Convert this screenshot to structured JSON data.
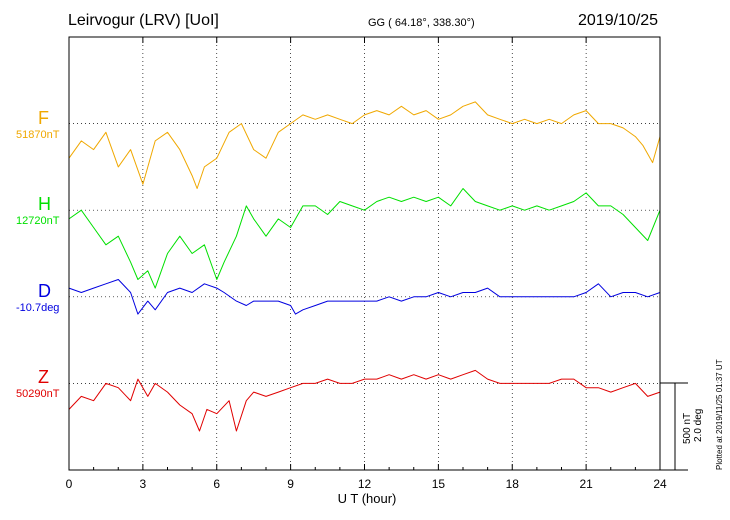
{
  "header": {
    "title": "Leirvogur (LRV)  [UoI]",
    "coords": "GG ( 64.18°, 338.30°)",
    "date": "2019/10/25"
  },
  "footnote": "Plotted at 2019/11/25 01:37 UT",
  "scale": {
    "nt": "500 nT",
    "deg": "2.0 deg"
  },
  "colors": {
    "F": "#f0a800",
    "H": "#00e000",
    "D": "#0000e0",
    "Z": "#e00000",
    "grid": "#000000"
  },
  "chart_data": {
    "type": "line",
    "xlabel": "U T (hour)",
    "xlim": [
      0,
      24
    ],
    "x_ticks": [
      0,
      3,
      6,
      9,
      12,
      15,
      18,
      21,
      24
    ],
    "x_tick_labels": [
      "0",
      "3",
      "6",
      "9",
      "12",
      "15",
      "18",
      "21",
      "24"
    ],
    "grid": true,
    "y_units_per_division": "500 nT / 2.0 deg",
    "series": [
      {
        "key": "F",
        "name": "F",
        "base_label": "51870nT",
        "base_division": 1,
        "x": [
          0,
          0.5,
          1,
          1.5,
          2,
          2.5,
          3,
          3.5,
          4,
          4.5,
          5,
          5.2,
          5.5,
          6,
          6.5,
          7,
          7.5,
          8,
          8.5,
          9,
          9.5,
          10,
          10.5,
          11,
          11.5,
          12,
          12.5,
          13,
          13.5,
          14,
          14.5,
          15,
          15.5,
          16,
          16.5,
          17,
          17.5,
          18,
          18.5,
          19,
          19.5,
          20,
          20.5,
          21,
          21.5,
          22,
          22.5,
          23,
          23.3,
          23.7,
          24
        ],
        "y": [
          -0.4,
          -0.2,
          -0.3,
          -0.1,
          -0.5,
          -0.3,
          -0.7,
          -0.2,
          -0.1,
          -0.3,
          -0.6,
          -0.75,
          -0.5,
          -0.4,
          -0.1,
          0.0,
          -0.3,
          -0.4,
          -0.1,
          0.0,
          0.1,
          0.05,
          0.1,
          0.05,
          0.0,
          0.1,
          0.15,
          0.1,
          0.2,
          0.1,
          0.15,
          0.05,
          0.1,
          0.2,
          0.25,
          0.1,
          0.05,
          0.0,
          0.05,
          0.0,
          0.05,
          0.0,
          0.1,
          0.15,
          0.0,
          0.0,
          -0.05,
          -0.15,
          -0.25,
          -0.45,
          -0.15
        ]
      },
      {
        "key": "H",
        "name": "H",
        "base_label": "12720nT",
        "base_division": 2,
        "x": [
          0,
          0.5,
          1,
          1.5,
          2,
          2.5,
          2.8,
          3.2,
          3.5,
          4,
          4.5,
          5,
          5.5,
          6,
          6.3,
          6.8,
          7.2,
          7.5,
          8,
          8.5,
          9,
          9.5,
          10,
          10.5,
          11,
          11.5,
          12,
          12.5,
          13,
          13.5,
          14,
          14.5,
          15,
          15.5,
          16,
          16.5,
          17,
          17.5,
          18,
          18.5,
          19,
          19.5,
          20,
          20.5,
          21,
          21.5,
          22,
          22.5,
          23,
          23.5,
          24
        ],
        "y": [
          -0.1,
          0.0,
          -0.2,
          -0.4,
          -0.3,
          -0.6,
          -0.8,
          -0.7,
          -0.9,
          -0.5,
          -0.3,
          -0.5,
          -0.4,
          -0.8,
          -0.6,
          -0.3,
          0.05,
          -0.1,
          -0.3,
          -0.1,
          -0.2,
          0.05,
          0.05,
          -0.05,
          0.1,
          0.05,
          0.0,
          0.1,
          0.15,
          0.1,
          0.15,
          0.1,
          0.15,
          0.05,
          0.25,
          0.1,
          0.05,
          0.0,
          0.05,
          0.0,
          0.05,
          0.0,
          0.05,
          0.1,
          0.2,
          0.05,
          0.05,
          -0.05,
          -0.2,
          -0.35,
          0.0
        ]
      },
      {
        "key": "D",
        "name": "D",
        "base_label": "-10.7deg",
        "base_division": 3,
        "x": [
          0,
          0.5,
          1,
          1.5,
          2,
          2.5,
          2.8,
          3.2,
          3.5,
          4,
          4.5,
          5,
          5.5,
          6,
          6.3,
          6.8,
          7.2,
          7.5,
          8,
          8.5,
          9,
          9.2,
          9.5,
          10,
          10.5,
          11,
          11.5,
          12,
          12.5,
          13,
          13.5,
          14,
          14.5,
          15,
          15.5,
          16,
          16.5,
          17,
          17.5,
          18,
          18.5,
          19,
          19.5,
          20,
          20.5,
          21,
          21.5,
          22,
          22.5,
          23,
          23.5,
          24
        ],
        "y": [
          0.1,
          0.05,
          0.1,
          0.15,
          0.2,
          0.05,
          -0.2,
          -0.05,
          -0.15,
          0.05,
          0.1,
          0.05,
          0.15,
          0.1,
          0.05,
          -0.05,
          -0.1,
          -0.05,
          -0.05,
          -0.05,
          -0.1,
          -0.2,
          -0.15,
          -0.1,
          -0.05,
          -0.05,
          -0.05,
          -0.05,
          -0.05,
          0.0,
          -0.05,
          0.0,
          0.0,
          0.05,
          0.0,
          0.05,
          0.05,
          0.1,
          0.0,
          0.0,
          0.0,
          0.0,
          0.0,
          0.0,
          0.0,
          0.05,
          0.15,
          0.0,
          0.05,
          0.05,
          0.0,
          0.05
        ]
      },
      {
        "key": "Z",
        "name": "Z",
        "base_label": "50290nT",
        "base_division": 4,
        "x": [
          0,
          0.5,
          1,
          1.5,
          2,
          2.5,
          2.8,
          3.2,
          3.5,
          4,
          4.5,
          5,
          5.3,
          5.6,
          6,
          6.5,
          6.8,
          7.2,
          7.5,
          8,
          8.5,
          9,
          9.5,
          10,
          10.5,
          11,
          11.5,
          12,
          12.5,
          13,
          13.5,
          14,
          14.5,
          15,
          15.5,
          16,
          16.5,
          17,
          17.5,
          18,
          18.5,
          19,
          19.5,
          20,
          20.5,
          21,
          21.5,
          22,
          22.5,
          23,
          23.5,
          24
        ],
        "y": [
          -0.3,
          -0.15,
          -0.2,
          0.0,
          -0.05,
          -0.2,
          0.05,
          -0.15,
          0.0,
          -0.1,
          -0.25,
          -0.35,
          -0.55,
          -0.3,
          -0.35,
          -0.2,
          -0.55,
          -0.2,
          -0.1,
          -0.15,
          -0.1,
          -0.05,
          0.0,
          0.0,
          0.05,
          0.0,
          0.0,
          0.05,
          0.05,
          0.1,
          0.05,
          0.1,
          0.05,
          0.1,
          0.05,
          0.1,
          0.15,
          0.05,
          0.0,
          0.0,
          0.0,
          0.0,
          0.0,
          0.05,
          0.05,
          -0.05,
          -0.05,
          -0.1,
          -0.05,
          0.0,
          -0.15,
          -0.1
        ]
      }
    ]
  }
}
